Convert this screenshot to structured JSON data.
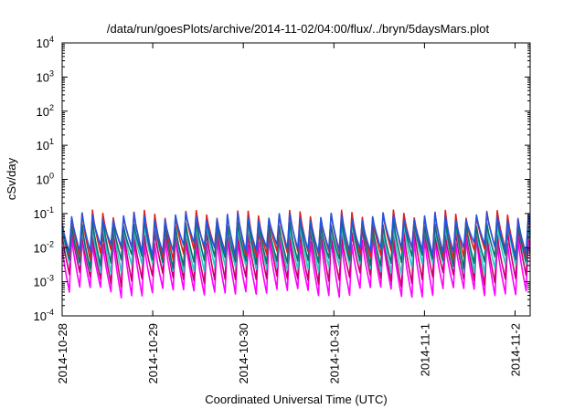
{
  "chart_data": {
    "type": "line",
    "title": "/data/run/goesPlots/archive/2014-11-02/04:00/flux/../bryn/5daysMars.plot",
    "xlabel": "Coordinated Universal Time (UTC)",
    "ylabel": "cSv/day",
    "yscale": "log",
    "ylim": [
      0.0001,
      10000
    ],
    "y_ticks": [
      {
        "base": "10",
        "exp": "-4",
        "value": 0.0001
      },
      {
        "base": "10",
        "exp": "-3",
        "value": 0.001
      },
      {
        "base": "10",
        "exp": "-2",
        "value": 0.01
      },
      {
        "base": "10",
        "exp": "-1",
        "value": 0.1
      },
      {
        "base": "10",
        "exp": "0",
        "value": 1
      },
      {
        "base": "10",
        "exp": "1",
        "value": 10
      },
      {
        "base": "10",
        "exp": "2",
        "value": 100
      },
      {
        "base": "10",
        "exp": "3",
        "value": 1000
      },
      {
        "base": "10",
        "exp": "4",
        "value": 10000
      }
    ],
    "xlim": [
      "2014-10-28T00:00",
      "2014-11-02T04:00"
    ],
    "x_ticks": [
      "2014-10-28",
      "2014-10-29",
      "2014-10-30",
      "2014-10-31",
      "2014-11-1",
      "2014-11-2"
    ],
    "grid": false,
    "legend": "none",
    "sawtooth_period_hours": 2.75,
    "series": [
      {
        "color": "#ff00ff",
        "peak": 0.016,
        "trough": 0.0005
      },
      {
        "color": "#c8006e",
        "peak": 0.03,
        "trough": 0.0012
      },
      {
        "color": "#2ec8c8",
        "peak": 0.045,
        "trough": 0.0025
      },
      {
        "color": "#0b6e6e",
        "peak": 0.055,
        "trough": 0.004
      },
      {
        "color": "#e0201c",
        "peak": 0.095,
        "trough": 0.007
      },
      {
        "color": "#2455e0",
        "peak": 0.08,
        "trough": 0.009
      }
    ]
  }
}
